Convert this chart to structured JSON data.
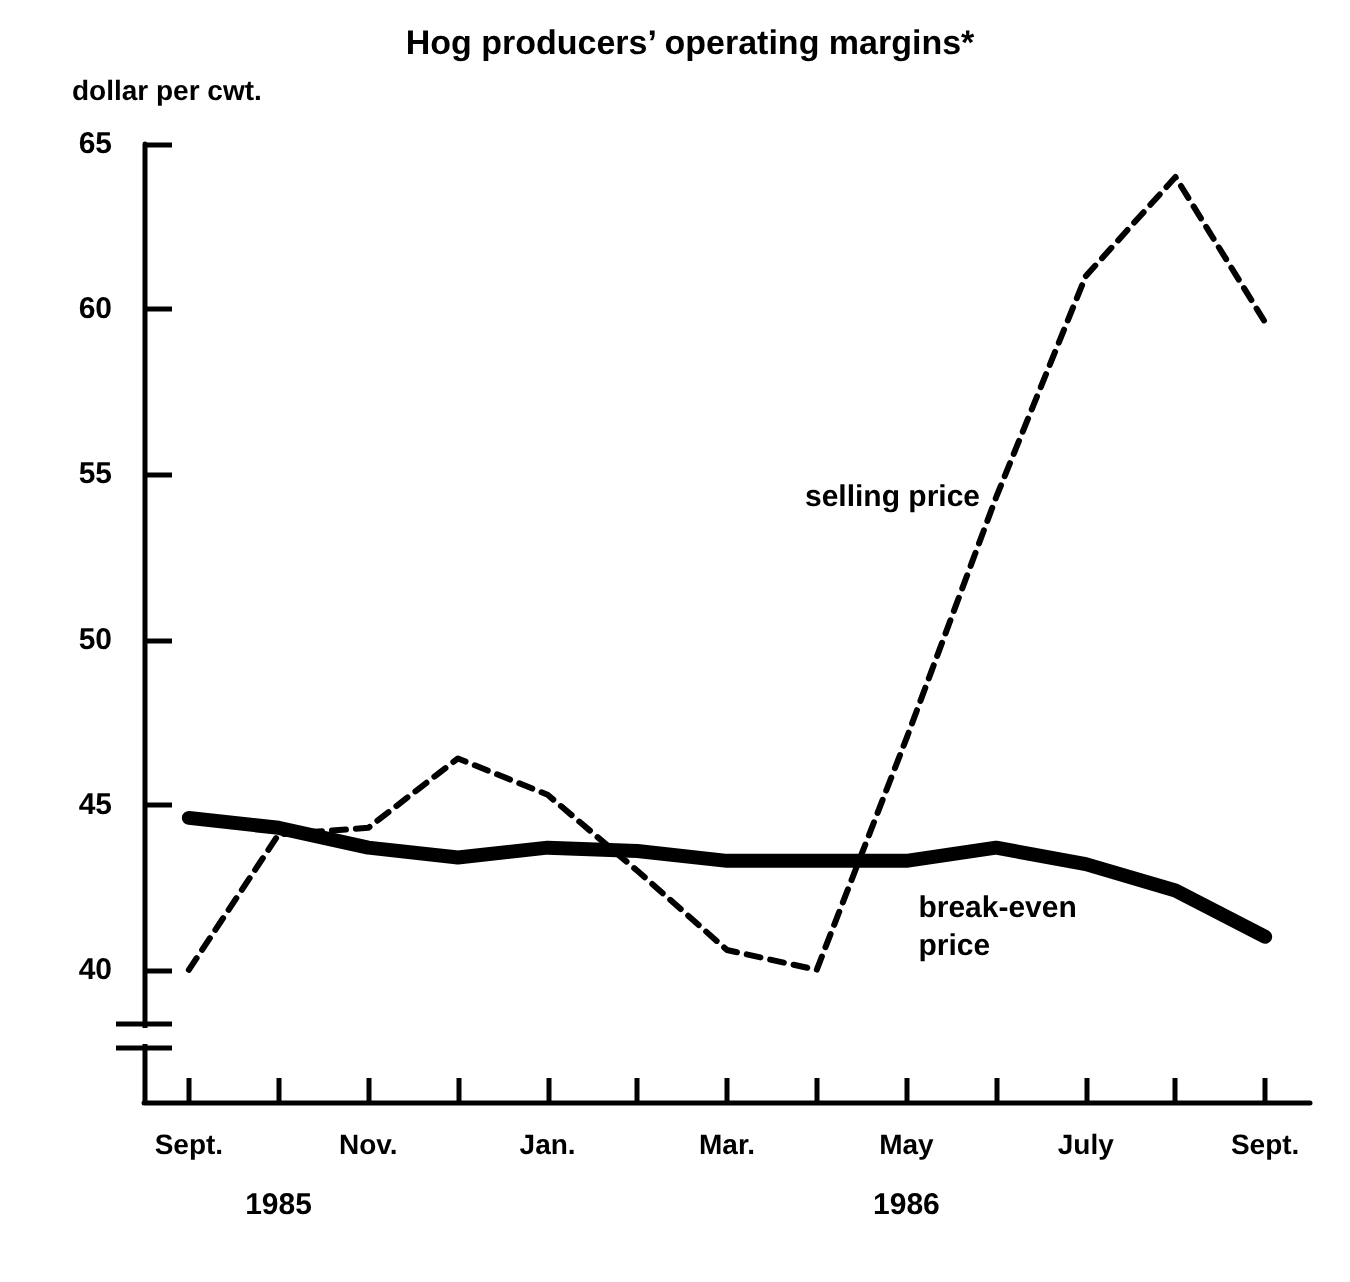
{
  "chart_data": {
    "type": "line",
    "title": "Hog producers’ operating margins*",
    "ylabel": "dollar per cwt.",
    "categories": [
      "Sept.",
      null,
      "Nov.",
      null,
      "Jan.",
      null,
      "Mar.",
      null,
      "May",
      null,
      "July",
      null,
      "Sept."
    ],
    "series": [
      {
        "name": "selling price",
        "color": "#000000",
        "line_style": "dashed",
        "values": [
          40.0,
          44.1,
          44.3,
          46.4,
          45.3,
          43.0,
          40.6,
          40.0,
          47.0,
          54.3,
          61.0,
          64.0,
          59.6
        ]
      },
      {
        "name": "break-even price",
        "color": "#000000",
        "line_style": "solid",
        "values": [
          44.6,
          44.3,
          43.7,
          43.4,
          43.7,
          43.6,
          43.3,
          43.3,
          43.3,
          43.7,
          43.2,
          42.4,
          41.0
        ]
      }
    ],
    "annotations": [
      "1985",
      "1986"
    ],
    "ylim": [
      36,
      65
    ],
    "yticks": [
      40,
      45,
      50,
      55,
      60,
      65
    ],
    "grid": false,
    "legend": false,
    "marker": "none"
  }
}
